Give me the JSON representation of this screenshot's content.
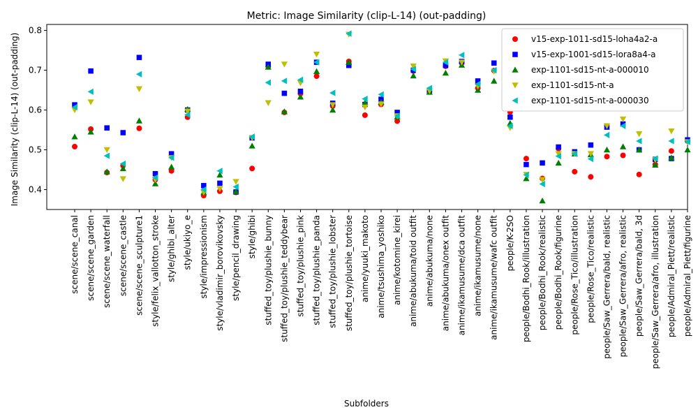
{
  "chart_data": {
    "type": "scatter",
    "title": "Metric: Image Similarity (clip-L-14) (out-padding)",
    "xlabel": "Subfolders",
    "ylabel": "Image Similarity (clip-L-14) (out-padding)",
    "ylim": [
      0.35,
      0.815
    ],
    "yticks": [
      0.4,
      0.5,
      0.6,
      0.7,
      0.8
    ],
    "grid": false,
    "legend_position": "top-right",
    "categories": [
      "scene/scene_canal",
      "scene/scene_garden",
      "scene/scene_waterfall",
      "scene/scene_castle",
      "scene/scene_sculpture1",
      "style/felix_vallotton_stroke",
      "style/ghibi_alter",
      "style/ukiyo_e",
      "style/impressionism",
      "style/vladimir_borovikovsky",
      "style/pencil_drawing",
      "style/ghibi",
      "stuffed_toy/plushie_bunny",
      "stuffed_toy/plushie_teddybear",
      "stuffed_toy/plushie_pink",
      "stuffed_toy/plushie_panda",
      "stuffed_toy/plushie_lobster",
      "stuffed_toy/plushie_tortoise",
      "anime/yuuki_makoto",
      "anime/tsushima_yoshiko",
      "anime/kotomine_kirei",
      "anime/abukuma/toid outfit",
      "anime/abukuma/none",
      "anime/abukuma/onex outfit",
      "anime/ikamusume/dca outfit",
      "anime/ikamusume/none",
      "anime/ikamusume/wafc outfit",
      "people/K-2SO",
      "people/Bodhi_Rook/illustration",
      "people/Bodhi_Rook/realistic",
      "people/Bodhi_Rook/figurine",
      "people/Rose_Tico/illustration",
      "people/Rose_Tico/realistic",
      "people/Saw_Gerrera/bald, realistic",
      "people/Saw_Gerrera/afro, realistic",
      "people/Saw_Gerrera/bald, 3d",
      "people/Saw_Gerrera/afro, illustration",
      "people/Admiral_Piett/realistic",
      "people/Admiral_Piett/figurine"
    ],
    "series": [
      {
        "name": "v15-exp-1011-sd15-loha4a2-a",
        "color": "#ff0000",
        "marker": "circle",
        "values": [
          0.508,
          0.552,
          0.443,
          0.46,
          0.554,
          0.425,
          0.447,
          0.582,
          0.385,
          0.396,
          0.393,
          0.453,
          0.709,
          0.594,
          0.641,
          0.685,
          0.61,
          0.722,
          0.587,
          0.614,
          0.572,
          0.698,
          0.647,
          0.71,
          0.718,
          0.655,
          0.699,
          0.595,
          0.478,
          0.428,
          0.503,
          0.445,
          0.432,
          0.483,
          0.486,
          0.438,
          0.463,
          0.497,
          0.522
        ]
      },
      {
        "name": "v15-exp-1001-sd15-lora8a4-a",
        "color": "#0000ff",
        "marker": "square",
        "values": [
          0.613,
          0.698,
          0.555,
          0.543,
          0.732,
          0.44,
          0.49,
          0.6,
          0.41,
          0.416,
          0.394,
          0.53,
          0.715,
          0.642,
          0.647,
          0.72,
          0.617,
          0.712,
          0.614,
          0.627,
          0.594,
          0.7,
          0.648,
          0.712,
          0.722,
          0.673,
          0.718,
          0.582,
          0.463,
          0.467,
          0.507,
          0.495,
          0.512,
          0.557,
          0.565,
          0.5,
          0.476,
          0.478,
          0.525
        ]
      },
      {
        "name": "exp-1101-sd15-nt-a-000010",
        "color": "#008000",
        "marker": "triangle-up",
        "values": [
          0.533,
          0.545,
          0.445,
          0.453,
          0.573,
          0.415,
          0.457,
          0.602,
          0.393,
          0.437,
          0.395,
          0.51,
          0.708,
          0.596,
          0.633,
          0.697,
          0.6,
          0.72,
          0.618,
          0.62,
          0.583,
          0.686,
          0.645,
          0.693,
          0.713,
          0.65,
          0.673,
          0.567,
          0.428,
          0.372,
          0.467,
          0.49,
          0.488,
          0.5,
          0.508,
          0.5,
          0.462,
          0.48,
          0.5
        ]
      },
      {
        "name": "exp-1101-sd15-nt-a",
        "color": "#bfbf00",
        "marker": "triangle-down",
        "values": [
          0.6,
          0.62,
          0.5,
          0.427,
          0.653,
          0.425,
          0.48,
          0.597,
          0.393,
          0.402,
          0.42,
          0.53,
          0.618,
          0.715,
          0.668,
          0.74,
          0.613,
          0.79,
          0.607,
          0.615,
          0.585,
          0.71,
          0.648,
          0.723,
          0.72,
          0.66,
          0.697,
          0.555,
          0.438,
          0.425,
          0.49,
          0.49,
          0.49,
          0.56,
          0.577,
          0.54,
          0.475,
          0.547,
          0.52
        ]
      },
      {
        "name": "exp-1101-sd15-nt-a-000030",
        "color": "#00bfbf",
        "marker": "triangle-left",
        "values": [
          0.607,
          0.646,
          0.485,
          0.465,
          0.69,
          0.43,
          0.48,
          0.588,
          0.4,
          0.447,
          0.407,
          0.533,
          0.669,
          0.673,
          0.676,
          0.72,
          0.643,
          0.792,
          0.628,
          0.639,
          0.585,
          0.703,
          0.655,
          0.72,
          0.738,
          0.665,
          0.7,
          0.56,
          0.437,
          0.414,
          0.484,
          0.49,
          0.477,
          0.537,
          0.56,
          0.522,
          0.478,
          0.522,
          0.52
        ]
      }
    ]
  }
}
